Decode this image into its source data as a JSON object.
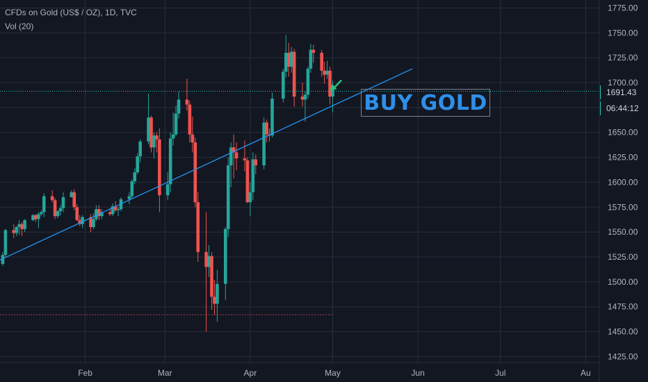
{
  "legend": {
    "symbol_line": "CFDs on Gold (US$ / OZ), 1D, TVC",
    "volume_line": "Vol (20)"
  },
  "annotation": {
    "text": "BUY GOLD"
  },
  "price_axis": {
    "last_price_label": "1691.43",
    "countdown_label": "06:44:12"
  },
  "colors": {
    "background": "#131722",
    "grid": "#2a2e39",
    "up": "#26a69a",
    "down": "#ef5350",
    "trendline": "#2196f3",
    "arrow": "#26c281",
    "annotation_text": "#2e8fe8",
    "price_line": "#26c6b5"
  },
  "chart_data": {
    "type": "candlestick",
    "title": "CFDs on Gold (US$ / OZ), 1D, TVC",
    "y_ticks": [
      1425,
      1450,
      1475,
      1500,
      1525,
      1550,
      1575,
      1600,
      1625,
      1650,
      1675,
      1700,
      1725,
      1750,
      1775
    ],
    "y_tick_labels": [
      "1425.00",
      "1450.00",
      "1475.00",
      "1500.00",
      "1525.00",
      "1550.00",
      "1575.00",
      "1600.00",
      "1625.00",
      "1650.00",
      "1675.00",
      "1700.00",
      "1725.00",
      "1750.00",
      "1775.00"
    ],
    "ylim": [
      1419,
      1783
    ],
    "x_labels": [
      {
        "label": "Feb",
        "date": "2020-02-01"
      },
      {
        "label": "Mar",
        "date": "2020-03-01"
      },
      {
        "label": "Apr",
        "date": "2020-04-01"
      },
      {
        "label": "May",
        "date": "2020-05-01"
      },
      {
        "label": "Jun",
        "date": "2020-06-01"
      },
      {
        "label": "Jul",
        "date": "2020-07-01"
      },
      {
        "label": "Au",
        "date": "2020-08-01"
      }
    ],
    "x_start": "2020-01-01",
    "x_end": "2020-08-08",
    "last_price": 1691.43,
    "support_level": 1467,
    "support_end": "2020-05-01",
    "trendline": {
      "p1": {
        "date": "2020-01-01",
        "price": 1522
      },
      "p2": {
        "date": "2020-05-30",
        "price": 1714
      }
    },
    "annotation_arrow": {
      "from": {
        "date": "2020-05-04",
        "price": 1702
      },
      "to": {
        "date": "2020-04-30",
        "price": 1692
      }
    },
    "candles": [
      [
        "2020-01-02",
        1518,
        1530,
        1516,
        1527
      ],
      [
        "2020-01-03",
        1527,
        1553,
        1525,
        1552
      ],
      [
        "2020-01-06",
        1552,
        1558,
        1544,
        1549
      ],
      [
        "2020-01-07",
        1549,
        1556,
        1546,
        1555
      ],
      [
        "2020-01-08",
        1555,
        1562,
        1547,
        1558
      ],
      [
        "2020-01-09",
        1558,
        1560,
        1546,
        1553
      ],
      [
        "2020-01-10",
        1553,
        1563,
        1550,
        1562
      ],
      [
        "2020-01-13",
        1562,
        1568,
        1561,
        1567
      ],
      [
        "2020-01-14",
        1567,
        1568,
        1560,
        1563
      ],
      [
        "2020-01-15",
        1563,
        1570,
        1554,
        1568
      ],
      [
        "2020-01-16",
        1568,
        1572,
        1566,
        1570
      ],
      [
        "2020-01-17",
        1570,
        1589,
        1565,
        1586
      ],
      [
        "2020-01-20",
        1586,
        1592,
        1580,
        1582
      ],
      [
        "2020-01-21",
        1582,
        1584,
        1563,
        1566
      ],
      [
        "2020-01-22",
        1566,
        1572,
        1564,
        1571
      ],
      [
        "2020-01-23",
        1571,
        1577,
        1567,
        1574
      ],
      [
        "2020-01-24",
        1574,
        1590,
        1570,
        1585
      ],
      [
        "2020-01-27",
        1585,
        1592,
        1585,
        1590
      ],
      [
        "2020-01-28",
        1590,
        1593,
        1572,
        1575
      ],
      [
        "2020-01-29",
        1575,
        1578,
        1561,
        1562
      ],
      [
        "2020-01-30",
        1562,
        1567,
        1556,
        1558
      ],
      [
        "2020-01-31",
        1558,
        1567,
        1554,
        1565
      ],
      [
        "2020-02-03",
        1565,
        1568,
        1550,
        1555
      ],
      [
        "2020-02-04",
        1555,
        1569,
        1553,
        1563
      ],
      [
        "2020-02-05",
        1563,
        1577,
        1561,
        1573
      ],
      [
        "2020-02-06",
        1573,
        1577,
        1562,
        1566
      ],
      [
        "2020-02-07",
        1566,
        1573,
        1563,
        1570
      ],
      [
        "2020-02-10",
        1570,
        1574,
        1566,
        1568
      ],
      [
        "2020-02-11",
        1568,
        1579,
        1566,
        1576
      ],
      [
        "2020-02-12",
        1576,
        1581,
        1570,
        1572
      ],
      [
        "2020-02-13",
        1572,
        1575,
        1566,
        1573
      ],
      [
        "2020-02-14",
        1573,
        1585,
        1571,
        1583
      ],
      [
        "2020-02-17",
        1583,
        1590,
        1578,
        1586
      ],
      [
        "2020-02-18",
        1586,
        1603,
        1583,
        1601
      ],
      [
        "2020-02-19",
        1601,
        1614,
        1598,
        1610
      ],
      [
        "2020-02-20",
        1610,
        1629,
        1608,
        1626
      ],
      [
        "2020-02-21",
        1626,
        1643,
        1620,
        1641
      ],
      [
        "2020-02-24",
        1641,
        1689,
        1638,
        1665
      ],
      [
        "2020-02-25",
        1665,
        1667,
        1630,
        1635
      ],
      [
        "2020-02-26",
        1635,
        1650,
        1624,
        1647
      ],
      [
        "2020-02-27",
        1647,
        1650,
        1630,
        1643
      ],
      [
        "2020-02-28",
        1643,
        1654,
        1570,
        1587
      ],
      [
        "2020-03-02",
        1587,
        1610,
        1582,
        1598
      ],
      [
        "2020-03-03",
        1598,
        1650,
        1590,
        1644
      ],
      [
        "2020-03-04",
        1644,
        1670,
        1637,
        1648
      ],
      [
        "2020-03-05",
        1648,
        1677,
        1646,
        1669
      ],
      [
        "2020-03-06",
        1669,
        1691,
        1664,
        1683
      ],
      [
        "2020-03-09",
        1683,
        1704,
        1672,
        1678
      ],
      [
        "2020-03-10",
        1678,
        1682,
        1640,
        1648
      ],
      [
        "2020-03-11",
        1648,
        1666,
        1630,
        1640
      ],
      [
        "2020-03-12",
        1640,
        1645,
        1575,
        1580
      ],
      [
        "2020-03-13",
        1580,
        1590,
        1520,
        1530
      ],
      [
        "2020-03-16",
        1530,
        1570,
        1450,
        1515
      ],
      [
        "2020-03-17",
        1515,
        1537,
        1505,
        1526
      ],
      [
        "2020-03-18",
        1526,
        1530,
        1472,
        1485
      ],
      [
        "2020-03-19",
        1485,
        1502,
        1467,
        1478
      ],
      [
        "2020-03-20",
        1478,
        1512,
        1460,
        1498
      ],
      [
        "2020-03-23",
        1498,
        1555,
        1482,
        1553
      ],
      [
        "2020-03-24",
        1553,
        1625,
        1545,
        1617
      ],
      [
        "2020-03-25",
        1617,
        1640,
        1595,
        1635
      ],
      [
        "2020-03-26",
        1635,
        1648,
        1604,
        1630
      ],
      [
        "2020-03-27",
        1630,
        1640,
        1612,
        1624
      ],
      [
        "2020-03-30",
        1624,
        1642,
        1611,
        1622
      ],
      [
        "2020-03-31",
        1622,
        1625,
        1579,
        1580
      ],
      [
        "2020-04-01",
        1580,
        1600,
        1566,
        1590
      ],
      [
        "2020-04-02",
        1590,
        1630,
        1582,
        1623
      ],
      [
        "2020-04-03",
        1623,
        1628,
        1608,
        1617
      ],
      [
        "2020-04-06",
        1617,
        1665,
        1613,
        1660
      ],
      [
        "2020-04-07",
        1660,
        1663,
        1640,
        1648
      ],
      [
        "2020-04-08",
        1648,
        1654,
        1641,
        1647
      ],
      [
        "2020-04-09",
        1647,
        1690,
        1645,
        1684
      ],
      [
        "2020-04-13",
        1684,
        1714,
        1680,
        1711
      ],
      [
        "2020-04-14",
        1711,
        1748,
        1705,
        1730
      ],
      [
        "2020-04-15",
        1730,
        1740,
        1706,
        1716
      ],
      [
        "2020-04-16",
        1716,
        1736,
        1710,
        1731
      ],
      [
        "2020-04-17",
        1731,
        1734,
        1676,
        1686
      ],
      [
        "2020-04-20",
        1686,
        1700,
        1676,
        1683
      ],
      [
        "2020-04-21",
        1683,
        1691,
        1661,
        1688
      ],
      [
        "2020-04-22",
        1688,
        1716,
        1684,
        1714
      ],
      [
        "2020-04-23",
        1714,
        1739,
        1710,
        1733
      ],
      [
        "2020-04-24",
        1733,
        1738,
        1720,
        1730
      ],
      [
        "2020-04-27",
        1730,
        1733,
        1706,
        1712
      ],
      [
        "2020-04-28",
        1712,
        1721,
        1699,
        1708
      ],
      [
        "2020-04-29",
        1708,
        1722,
        1704,
        1712
      ],
      [
        "2020-04-30",
        1712,
        1716,
        1678,
        1686
      ],
      [
        "2020-05-01",
        1686,
        1702,
        1670,
        1693
      ]
    ]
  }
}
